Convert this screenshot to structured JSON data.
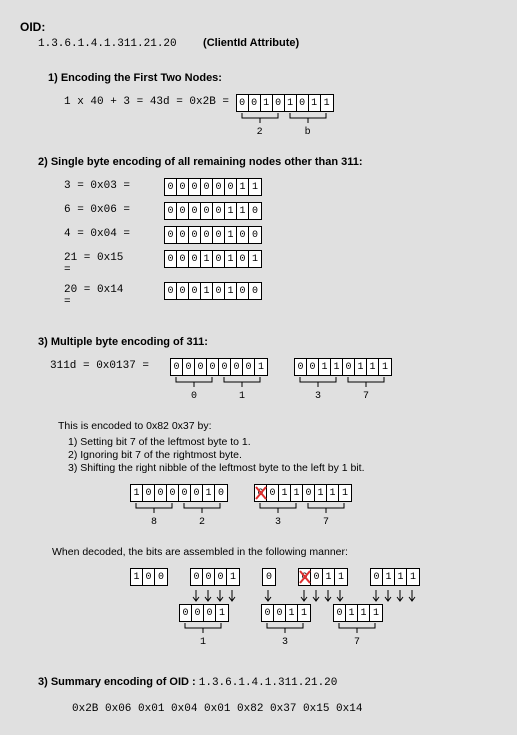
{
  "header": "OID:",
  "oid_string": "1.3.6.1.4.1.311.21.20",
  "oid_label": "(ClientId Attribute)",
  "sec1": {
    "title": "1) Encoding the First Two Nodes:",
    "expr": "1 x 40 + 3 = 43d = 0x2B = ",
    "bits": [
      "0",
      "0",
      "1",
      "0",
      "1",
      "0",
      "1",
      "1"
    ],
    "nibbles": [
      "2",
      "b"
    ]
  },
  "sec2": {
    "title": "2) Single byte encoding of all remaining nodes other than 311:",
    "rows": [
      {
        "label": "3 = 0x03 = ",
        "bits": [
          "0",
          "0",
          "0",
          "0",
          "0",
          "0",
          "1",
          "1"
        ]
      },
      {
        "label": "6 = 0x06 = ",
        "bits": [
          "0",
          "0",
          "0",
          "0",
          "0",
          "1",
          "1",
          "0"
        ]
      },
      {
        "label": "4 = 0x04 = ",
        "bits": [
          "0",
          "0",
          "0",
          "0",
          "0",
          "1",
          "0",
          "0"
        ]
      },
      {
        "label": "21 = 0x15\n=",
        "bits": [
          "0",
          "0",
          "0",
          "1",
          "0",
          "1",
          "0",
          "1"
        ]
      },
      {
        "label": "20 = 0x14\n=",
        "bits": [
          "0",
          "0",
          "0",
          "1",
          "0",
          "1",
          "0",
          "0"
        ]
      }
    ]
  },
  "sec3": {
    "title": "3) Multiple byte encoding of 311:",
    "row1": {
      "label": "311d = 0x0137 = ",
      "bytes": [
        {
          "bits": [
            "0",
            "0",
            "0",
            "0",
            "0",
            "0",
            "0",
            "1"
          ],
          "nibbles": [
            "0",
            "1"
          ]
        },
        {
          "bits": [
            "0",
            "0",
            "1",
            "1",
            "0",
            "1",
            "1",
            "1"
          ],
          "nibbles": [
            "3",
            "7"
          ]
        }
      ]
    },
    "encoded_intro": "This is encoded to 0x82 0x37 by:",
    "steps": [
      "1) Setting bit 7 of the leftmost byte to 1.",
      "2) Ignoring bit 7 of the rightmost byte.",
      "3) Shifting the right nibble of the leftmost byte to the left by 1 bit."
    ],
    "row2": {
      "bytes": [
        {
          "bits": [
            "1",
            "0",
            "0",
            "0",
            "0",
            "0",
            "1",
            "0"
          ],
          "nibbles": [
            "8",
            "2"
          ],
          "xcells": []
        },
        {
          "bits": [
            "0",
            "0",
            "1",
            "1",
            "0",
            "1",
            "1",
            "1"
          ],
          "nibbles": [
            "3",
            "7"
          ],
          "xcells": [
            0
          ]
        }
      ]
    },
    "decode_text": "When decoded, the bits are assembled in the following manner:",
    "decode": {
      "top": {
        "groups": [
          {
            "bits": [
              "1",
              "0",
              "0"
            ],
            "arrows": [
              false,
              false,
              false
            ]
          },
          {
            "bits": [
              "0",
              "0",
              "0",
              "1"
            ],
            "arrows": [
              true,
              true,
              true,
              true
            ]
          },
          {
            "bits": [
              "0"
            ],
            "arrows": [
              true
            ]
          },
          {
            "bits": [
              "0",
              "0",
              "1",
              "1"
            ],
            "arrows": [
              true,
              true,
              true,
              true
            ],
            "xcells": [
              0
            ]
          },
          {
            "bits": [
              "0",
              "1",
              "1",
              "1"
            ],
            "arrows": [
              true,
              true,
              true,
              true
            ]
          }
        ]
      },
      "bottom": [
        {
          "bits": [
            "0",
            "0",
            "0",
            "1"
          ],
          "label": "1"
        },
        {
          "bits": [
            "0",
            "0",
            "1",
            "1"
          ],
          "label": "3"
        },
        {
          "bits": [
            "0",
            "1",
            "1",
            "1"
          ],
          "label": "7"
        }
      ]
    }
  },
  "sec4": {
    "title_prefix": "3) Summary encoding of OID : ",
    "title_oid": "1.3.6.1.4.1.311.21.20",
    "bytes": "0x2B  0x06  0x01  0x04  0x01  0x82  0x37  0x15  0x14"
  },
  "colors": {
    "bg": "#e0e0e0",
    "cell_bg": "#ffffff",
    "border": "#000000",
    "red": "#e03030"
  }
}
